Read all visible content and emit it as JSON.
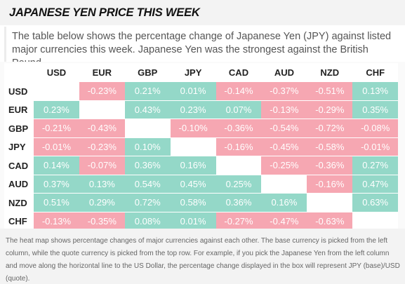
{
  "header": {
    "title": "JAPANESE YEN PRICE THIS WEEK"
  },
  "description": "The table below shows the percentage change of Japanese Yen (JPY) against listed major currencies this week. Japanese Yen was the strongest against the British Pound.",
  "colors": {
    "positive": "#94d8c8",
    "negative": "#f6a7b2",
    "blank": "#ffffff"
  },
  "table": {
    "columns": [
      "USD",
      "EUR",
      "GBP",
      "JPY",
      "CAD",
      "AUD",
      "NZD",
      "CHF"
    ],
    "rows": [
      {
        "label": "USD",
        "values": [
          "",
          "-0.23%",
          "0.21%",
          "0.01%",
          "-0.14%",
          "-0.37%",
          "-0.51%",
          "0.13%"
        ]
      },
      {
        "label": "EUR",
        "values": [
          "0.23%",
          "",
          "0.43%",
          "0.23%",
          "0.07%",
          "-0.13%",
          "-0.29%",
          "0.35%"
        ]
      },
      {
        "label": "GBP",
        "values": [
          "-0.21%",
          "-0.43%",
          "",
          "-0.10%",
          "-0.36%",
          "-0.54%",
          "-0.72%",
          "-0.08%"
        ]
      },
      {
        "label": "JPY",
        "values": [
          "-0.01%",
          "-0.23%",
          "0.10%",
          "",
          "-0.16%",
          "-0.45%",
          "-0.58%",
          "-0.01%"
        ]
      },
      {
        "label": "CAD",
        "values": [
          "0.14%",
          "-0.07%",
          "0.36%",
          "0.16%",
          "",
          "-0.25%",
          "-0.36%",
          "0.27%"
        ]
      },
      {
        "label": "AUD",
        "values": [
          "0.37%",
          "0.13%",
          "0.54%",
          "0.45%",
          "0.25%",
          "",
          "-0.16%",
          "0.47%"
        ]
      },
      {
        "label": "NZD",
        "values": [
          "0.51%",
          "0.29%",
          "0.72%",
          "0.58%",
          "0.36%",
          "0.16%",
          "",
          "0.63%"
        ]
      },
      {
        "label": "CHF",
        "values": [
          "-0.13%",
          "-0.35%",
          "0.08%",
          "0.01%",
          "-0.27%",
          "-0.47%",
          "-0.63%",
          ""
        ]
      }
    ]
  },
  "footer": {
    "note": "The heat map shows percentage changes of major currencies against each other. The base currency is picked from the left column, while the quote currency is picked from the top row. For example, if you pick the Japanese Yen from the left column and move along the horizontal line to the US Dollar, the percentage change displayed in the box will represent JPY (base)/USD (quote)."
  }
}
